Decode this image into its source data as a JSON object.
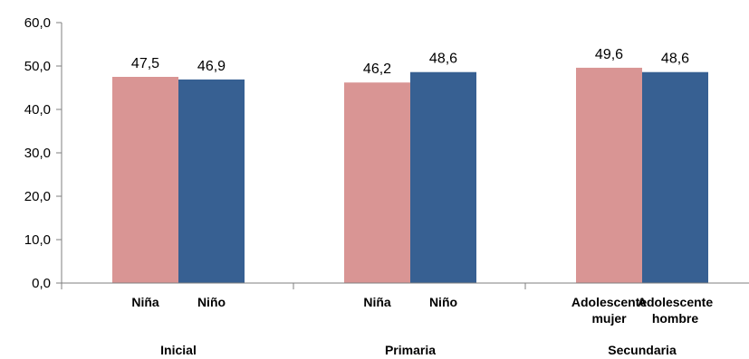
{
  "chart_data": {
    "type": "bar",
    "title": "",
    "xlabel": "",
    "ylabel": "",
    "ylim": [
      0,
      60
    ],
    "yticks": [
      "0,0",
      "10,0",
      "20,0",
      "30,0",
      "40,0",
      "50,0",
      "60,0"
    ],
    "grid": false,
    "groups": [
      {
        "name": "Inicial",
        "bars": [
          {
            "label": "Niña",
            "value": 47.5,
            "value_label": "47,5",
            "color": "#d99594"
          },
          {
            "label": "Niño",
            "value": 46.9,
            "value_label": "46,9",
            "color": "#376092"
          }
        ]
      },
      {
        "name": "Primaria",
        "bars": [
          {
            "label": "Niña",
            "value": 46.2,
            "value_label": "46,2",
            "color": "#d99594"
          },
          {
            "label": "Niño",
            "value": 48.6,
            "value_label": "48,6",
            "color": "#376092"
          }
        ]
      },
      {
        "name": "Secundaria",
        "bars": [
          {
            "label": "Adolescente mujer",
            "label_lines": [
              "Adolescente",
              "mujer"
            ],
            "value": 49.6,
            "value_label": "49,6",
            "color": "#d99594"
          },
          {
            "label": "Adolescente hombre",
            "label_lines": [
              "Adolescente",
              "hombre"
            ],
            "value": 48.6,
            "value_label": "48,6",
            "color": "#376092"
          }
        ]
      }
    ]
  }
}
